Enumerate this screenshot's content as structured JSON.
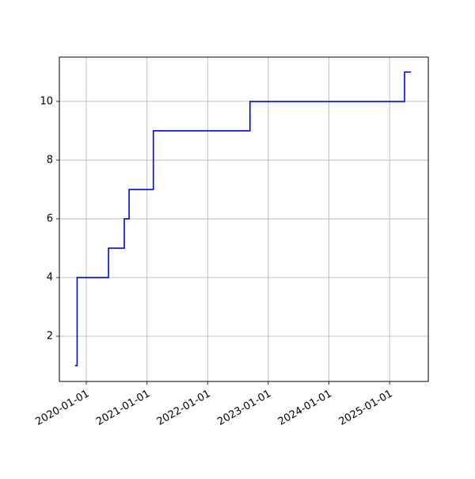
{
  "chart_data": {
    "type": "line",
    "drawstyle": "steps-post",
    "x": [
      "2019-10-25",
      "2019-11-07",
      "2020-05-14",
      "2020-08-17",
      "2020-09-15",
      "2021-02-08",
      "2022-09-13",
      "2025-04-01",
      "2025-05-09"
    ],
    "series": [
      {
        "color": "#0000ff",
        "values": [
          1,
          4,
          5,
          6,
          7,
          9,
          10,
          11,
          11
        ]
      }
    ],
    "xlim": [
      "2019-07-23",
      "2025-08-22"
    ],
    "xticks": [
      "2020-01-01",
      "2021-01-01",
      "2022-01-01",
      "2023-01-01",
      "2024-01-01",
      "2025-01-01"
    ],
    "ylim": [
      0.46,
      11.51
    ],
    "yticks": [
      2,
      4,
      6,
      8,
      10
    ],
    "grid": true
  }
}
